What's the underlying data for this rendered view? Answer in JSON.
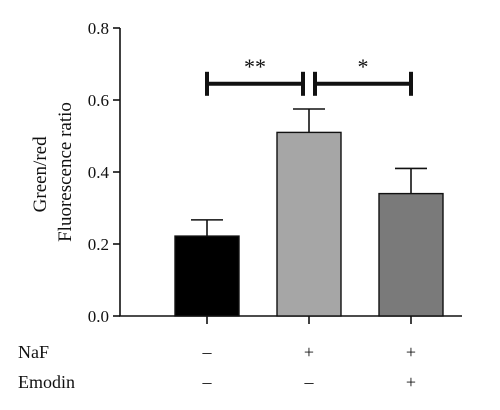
{
  "chart_data": {
    "type": "bar",
    "title": "",
    "ylabel_lines": [
      "Green/red",
      "Fluorescence ratio"
    ],
    "ylim": [
      0,
      0.8
    ],
    "yticks": [
      "0.0",
      "0.2",
      "0.4",
      "0.6",
      "0.8"
    ],
    "ytick_values": [
      0,
      0.2,
      0.4,
      0.6,
      0.8
    ],
    "bars": [
      {
        "value": 0.222,
        "error": 0.045,
        "color": "#000000"
      },
      {
        "value": 0.51,
        "error": 0.065,
        "color": "#a6a6a6"
      },
      {
        "value": 0.34,
        "error": 0.07,
        "color": "#7a7a7a"
      }
    ],
    "significance": [
      {
        "from": 0,
        "to": 1,
        "y": 0.645,
        "label": "**"
      },
      {
        "from": 1,
        "to": 2,
        "y": 0.645,
        "label": "*"
      }
    ],
    "treatments": [
      {
        "name": "NaF",
        "marks": [
          "–",
          "+",
          "+"
        ]
      },
      {
        "name": "Emodin",
        "marks": [
          "–",
          "–",
          "+"
        ]
      }
    ]
  }
}
